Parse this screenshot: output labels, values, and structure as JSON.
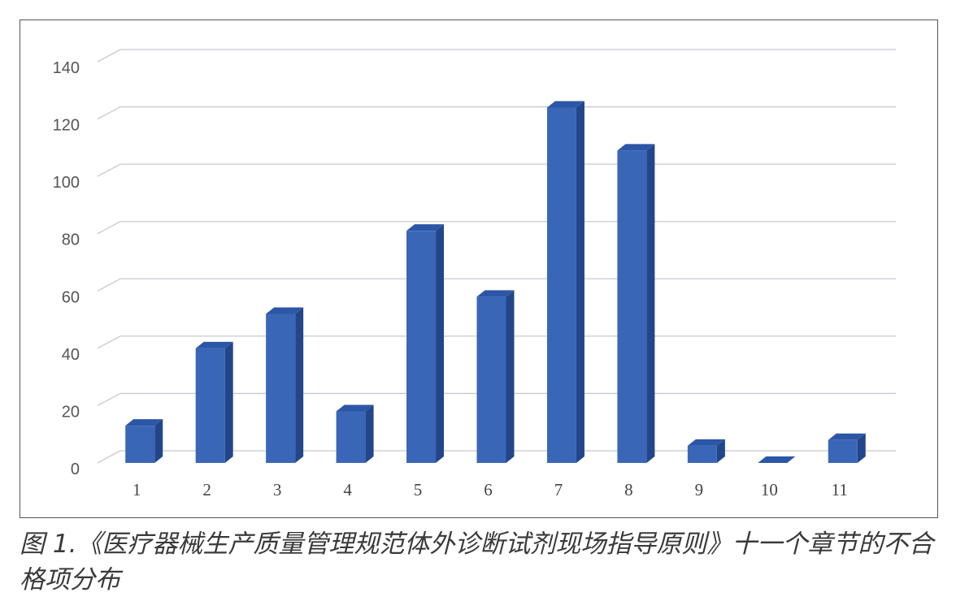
{
  "chart_data": {
    "type": "bar",
    "style": "3d-column",
    "categories": [
      "1",
      "2",
      "3",
      "4",
      "5",
      "6",
      "7",
      "8",
      "9",
      "10",
      "11"
    ],
    "values": [
      13,
      40,
      52,
      18,
      81,
      58,
      124,
      109,
      6,
      0,
      8
    ],
    "ylim": [
      0,
      140
    ],
    "yticks": [
      0,
      20,
      40,
      60,
      80,
      100,
      120,
      140
    ],
    "grid": true,
    "bar_color": "#3a66b8",
    "title": "",
    "xlabel": "",
    "ylabel": ""
  },
  "caption": "图 1.《医疗器械生产质量管理规范体外诊断试剂现场指导原则》十一个章节的不合格项分布"
}
